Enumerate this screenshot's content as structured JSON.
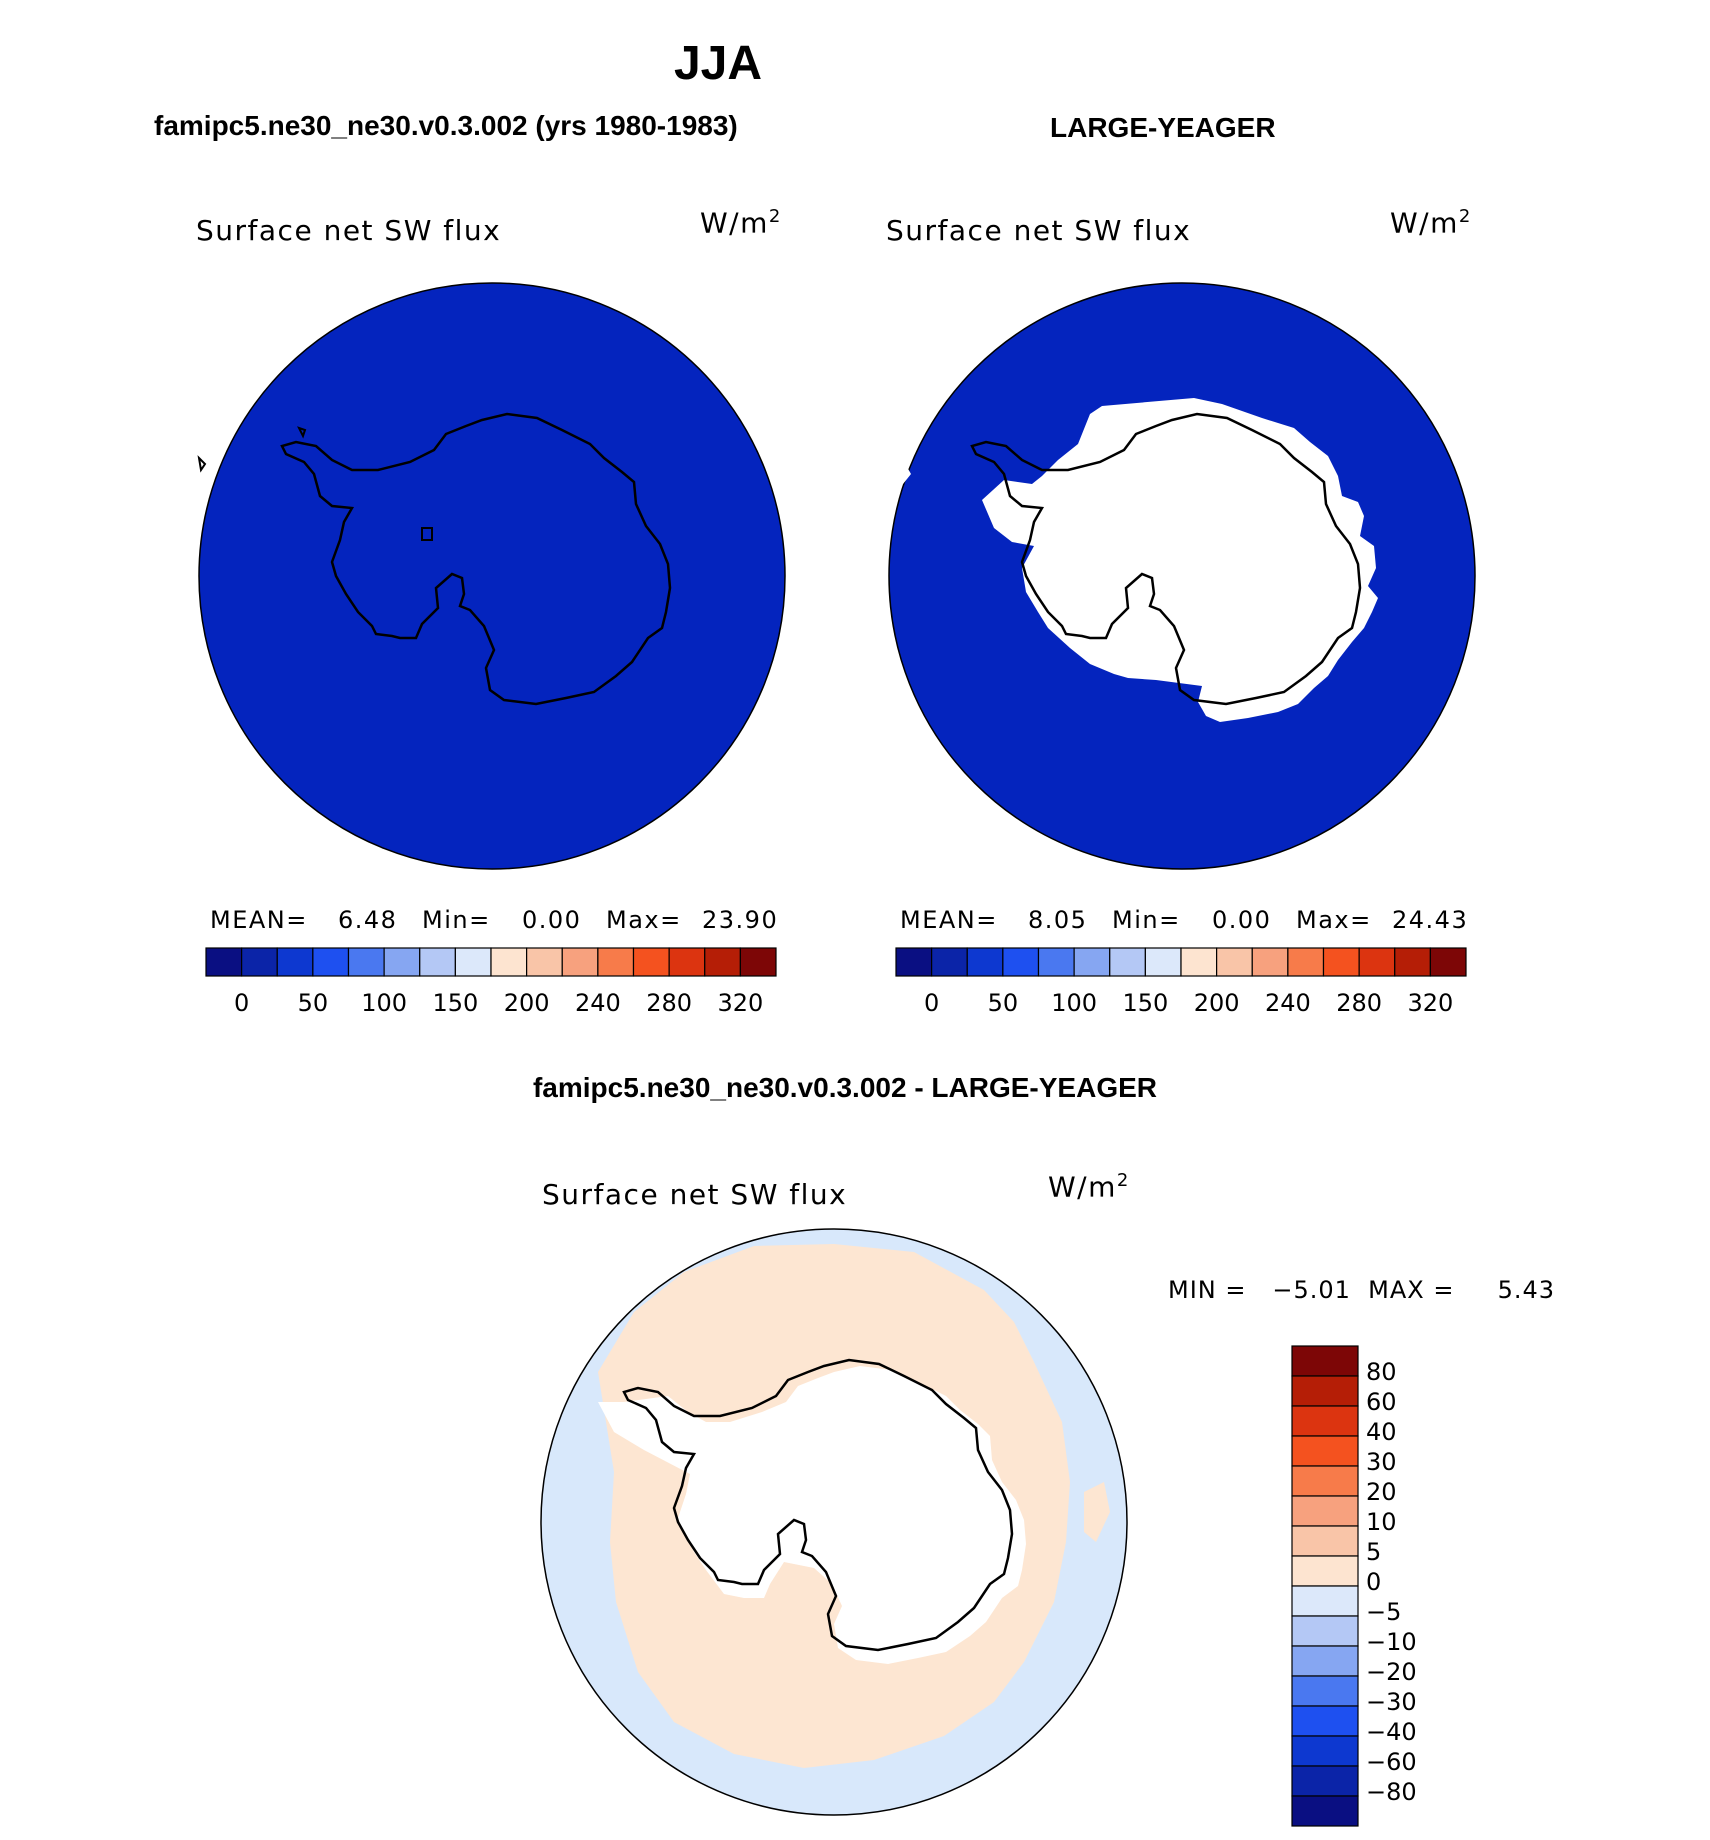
{
  "page_title": "JJA",
  "panels": [
    {
      "title": "famipc5.ne30_ne30.v0.3.002 (yrs 1980-1983)",
      "variable": "Surface net SW flux",
      "units_base": "W/m",
      "units_exp": "2",
      "stats": {
        "mean_label": "MEAN=",
        "mean": "6.48",
        "min_label": "Min=",
        "min": "0.00",
        "max_label": "Max=",
        "max": "23.90"
      }
    },
    {
      "title": "LARGE-YEAGER",
      "variable": "Surface net SW flux",
      "units_base": "W/m",
      "units_exp": "2",
      "stats": {
        "mean_label": "MEAN=",
        "mean": "8.05",
        "min_label": "Min=",
        "min": "0.00",
        "max_label": "Max=",
        "max": "24.43"
      }
    }
  ],
  "diff_panel": {
    "title": "famipc5.ne30_ne30.v0.3.002 - LARGE-YEAGER",
    "variable": "Surface net SW flux",
    "units_base": "W/m",
    "units_exp": "2",
    "minmax": "MIN =   −5.01  MAX =     5.43"
  },
  "abs_colorbar": {
    "colors": [
      "#0a0f82",
      "#0b24a8",
      "#0d38d0",
      "#1e50f0",
      "#4a78f0",
      "#86a6f2",
      "#b4c8f5",
      "#dce8fa",
      "#fde4d0",
      "#f9c5a8",
      "#f7a17e",
      "#f77b4a",
      "#f4521f",
      "#dc3410",
      "#b51e06",
      "#7d0606"
    ],
    "tick_labels": [
      "0",
      "50",
      "100",
      "150",
      "200",
      "240",
      "280",
      "320"
    ]
  },
  "diff_colorbar": {
    "colors": [
      "#7d0606",
      "#b51e06",
      "#dc3410",
      "#f4521f",
      "#f77b4a",
      "#f7a17e",
      "#f9c5a8",
      "#fde4d0",
      "#dce8fa",
      "#b4c8f5",
      "#86a6f2",
      "#4a78f0",
      "#1e50f0",
      "#0d38d0",
      "#0b24a8",
      "#0a0f82"
    ],
    "tick_labels": [
      "80",
      "60",
      "40",
      "30",
      "20",
      "10",
      "5",
      "0",
      "−5",
      "−10",
      "−20",
      "−30",
      "−40",
      "−60",
      "−80"
    ]
  },
  "map_colors": {
    "ocean_model": "#0424be",
    "ice_free_ocean_obs": "#0424be",
    "land": "#ffffff",
    "diff_positive": "#fde6d2",
    "diff_negative": "#d8e8fb"
  }
}
